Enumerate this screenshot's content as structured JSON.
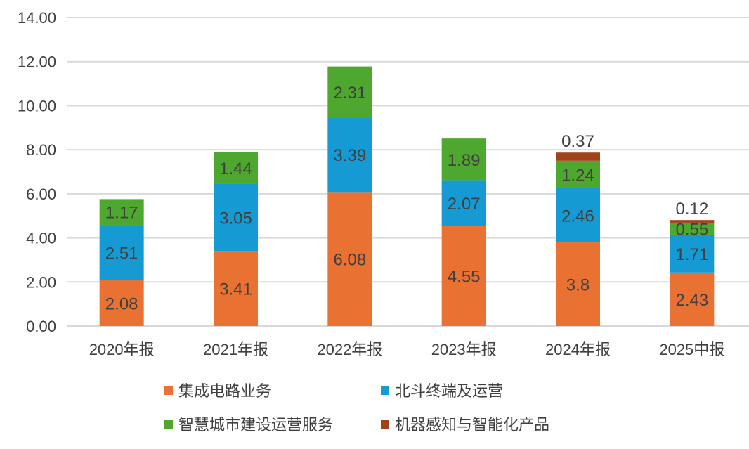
{
  "chart_data": {
    "type": "bar",
    "stacked": true,
    "title": "",
    "xlabel": "",
    "ylabel": "",
    "ylim": [
      0,
      14
    ],
    "yticks": [
      "0.00",
      "2.00",
      "4.00",
      "6.00",
      "8.00",
      "10.00",
      "12.00",
      "14.00"
    ],
    "grid": true,
    "legend_position": "bottom",
    "categories": [
      "2020年报",
      "2021年报",
      "2022年报",
      "2023年报",
      "2024年报",
      "2025中报"
    ],
    "series": [
      {
        "name": "集成电路业务",
        "color": "#E97132",
        "values": [
          2.08,
          3.41,
          6.08,
          4.55,
          3.8,
          2.43
        ]
      },
      {
        "name": "北斗终端及运营",
        "color": "#169AD4",
        "values": [
          2.51,
          3.05,
          3.39,
          2.07,
          2.46,
          1.71
        ]
      },
      {
        "name": "智慧城市建设运营服务",
        "color": "#4EA72E",
        "values": [
          1.17,
          1.44,
          2.31,
          1.89,
          1.24,
          0.55
        ]
      },
      {
        "name": "机器感知与智能化产品",
        "color": "#A0431A",
        "values": [
          null,
          null,
          null,
          null,
          0.37,
          0.12
        ]
      }
    ]
  }
}
